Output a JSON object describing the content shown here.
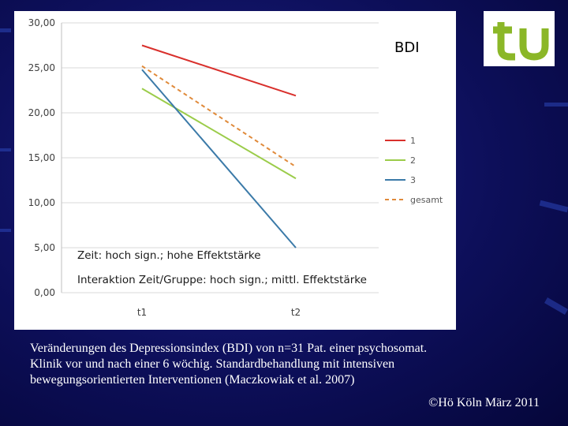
{
  "chart_data": {
    "type": "line",
    "title": "BDI",
    "categories": [
      "t1",
      "t2"
    ],
    "ylim": [
      0,
      30
    ],
    "yticks": [
      "0,00",
      "5,00",
      "10,00",
      "15,00",
      "20,00",
      "25,00",
      "30,00"
    ],
    "series": [
      {
        "name": "1",
        "values": [
          27.5,
          21.9
        ],
        "color": "#d9302c",
        "dash": "solid"
      },
      {
        "name": "2",
        "values": [
          22.7,
          12.7
        ],
        "color": "#9bcc4a",
        "dash": "solid"
      },
      {
        "name": "3",
        "values": [
          24.8,
          5.0
        ],
        "color": "#3b7aa8",
        "dash": "solid"
      },
      {
        "name": "gesamt",
        "values": [
          25.2,
          14.0
        ],
        "color": "#e08a3a",
        "dash": "dashed"
      }
    ],
    "grid": "horizontal-major",
    "legend_position": "right",
    "annotations": [
      "Zeit: hoch sign.; hohe Effektstärke",
      "Interaktion Zeit/Gruppe: hoch sign.; mittl. Effektstärke"
    ]
  },
  "caption": {
    "lines": [
      "Veränderungen des Depressionsindex (BDI) von n=31 Pat. einer psychosomat.",
      "Klinik vor und nach einer 6 wöchig. Standardbehandlung mit intensiven",
      "bewegungsorientierten Interventionen (Maczkowiak et al. 2007)"
    ],
    "copyright": "©Hö Köln März 2011"
  },
  "logo": {
    "text": "tu",
    "color": "#8bb728"
  },
  "theme": {
    "background": "#0d0f5a",
    "panel": "#ffffff",
    "caption_color": "#ffffff"
  }
}
